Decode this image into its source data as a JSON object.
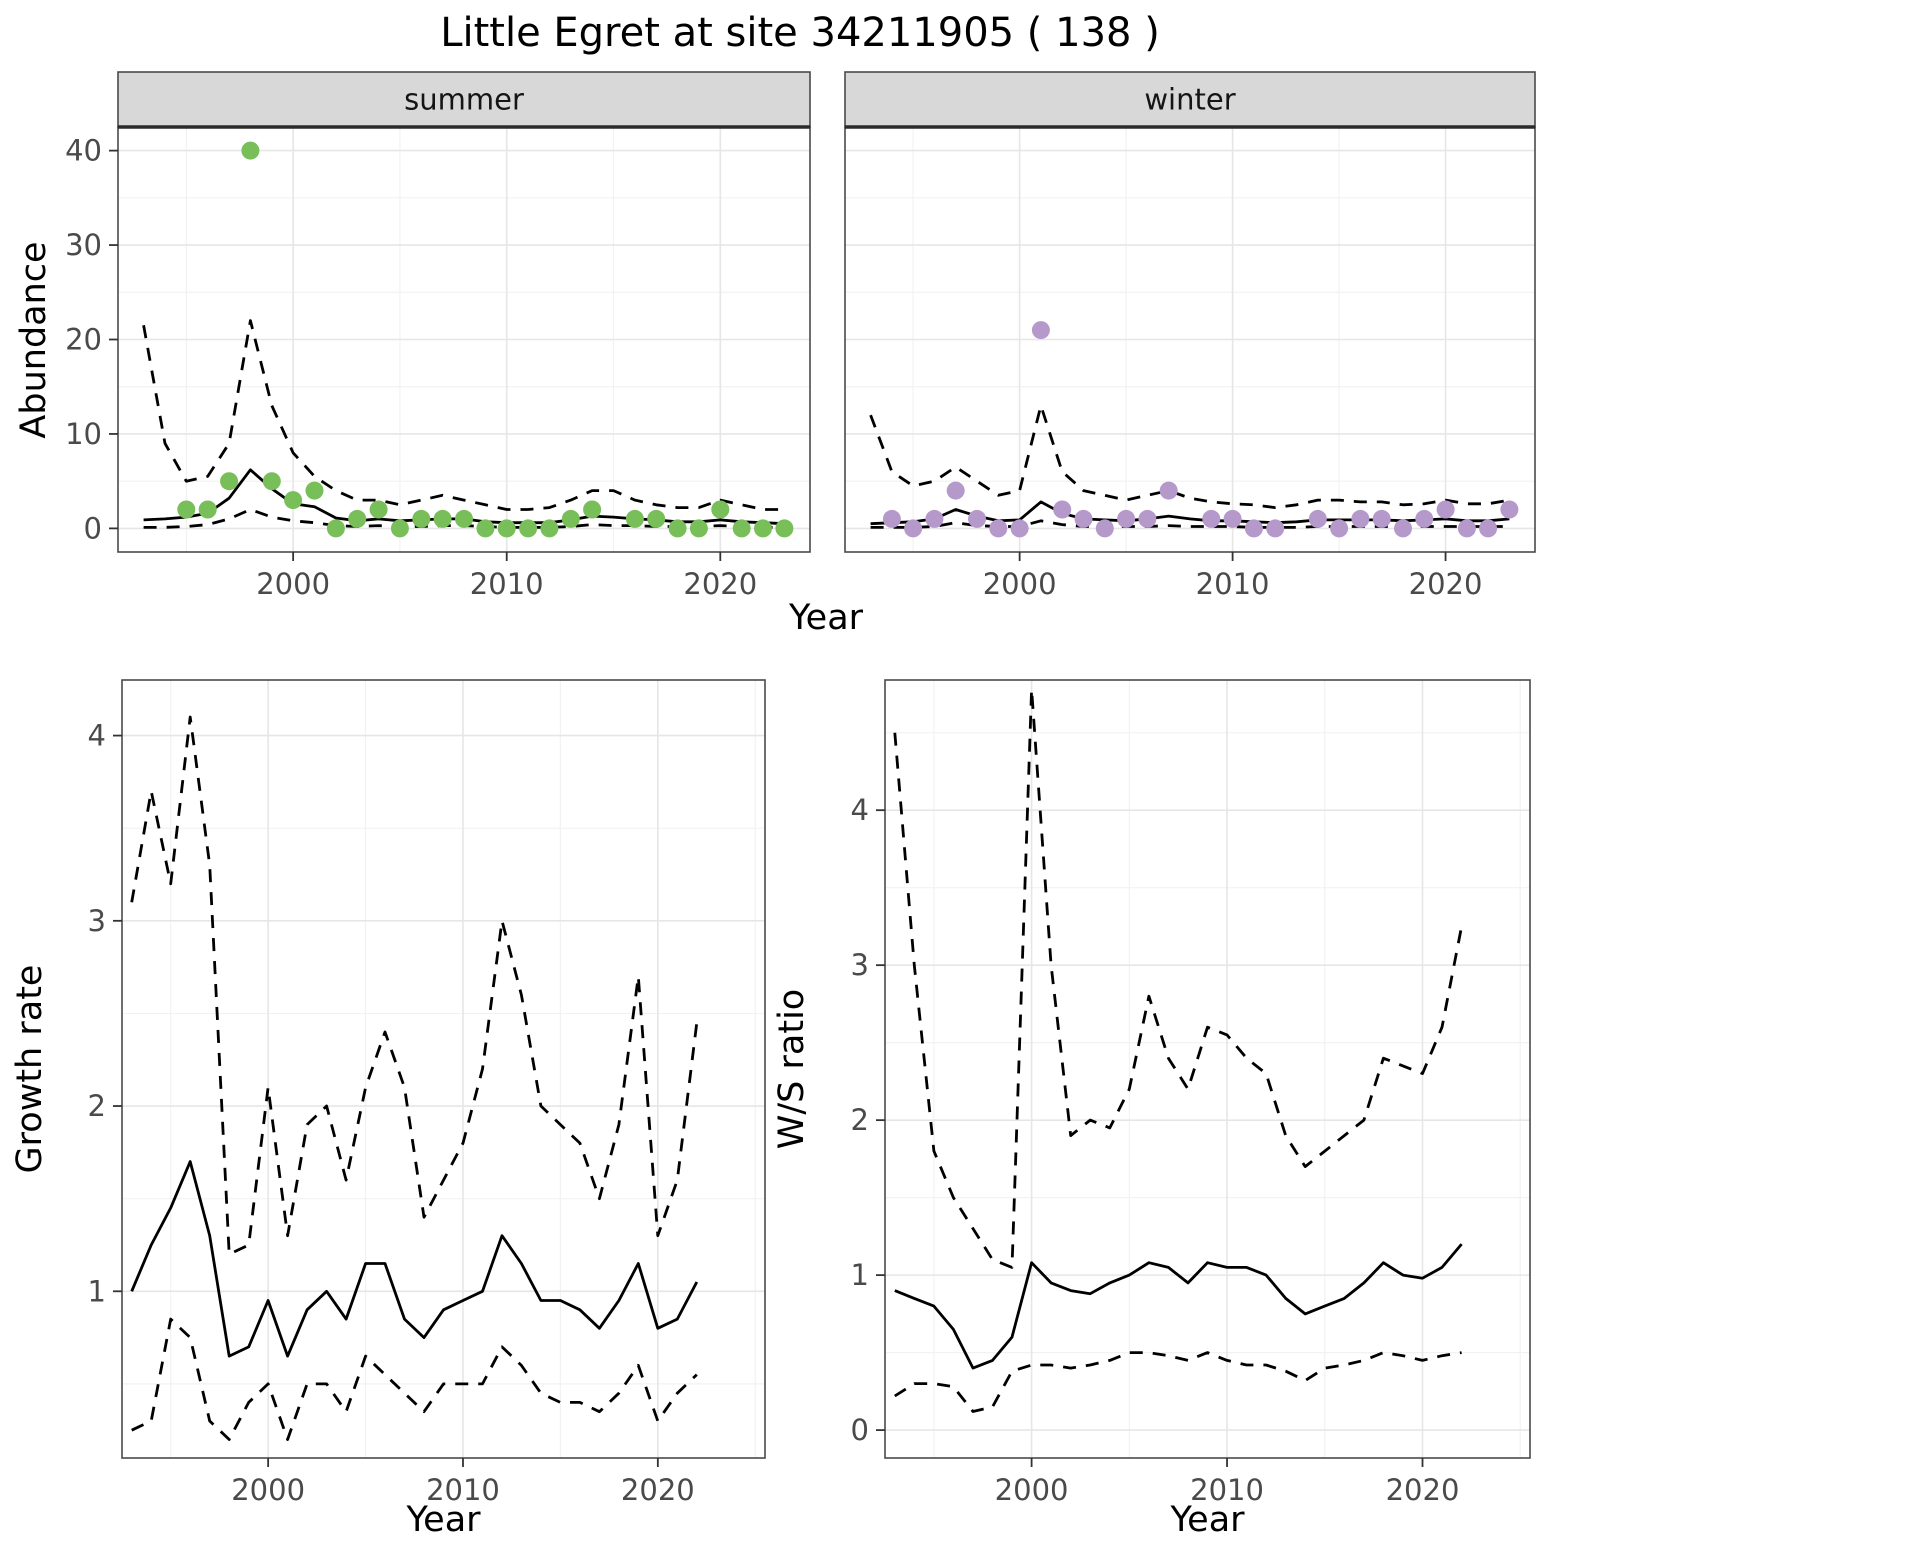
{
  "title": "Little Egret at site 34211905 ( 138 )",
  "axis_labels": {
    "abundance": "Abundance",
    "year_top": "Year",
    "growth": "Growth rate",
    "year_bottom_left": "Year",
    "ws": "W/S ratio",
    "year_bottom_right": "Year"
  },
  "colors": {
    "summer_points": "#78be59",
    "winter_points": "#b599cb",
    "line": "#000000",
    "grid_major": "#e6e6e6",
    "grid_minor": "#f2f2f2",
    "strip_bg": "#d8d8d8",
    "strip_line": "#2b2b2b",
    "panel_border": "#4a4a4a",
    "tick": "#333333",
    "panel_bg": "#ffffff"
  },
  "chart_data": [
    {
      "id": "abundance-summer",
      "type": "scatter",
      "facet_label": "summer",
      "xlabel": "Year",
      "ylabel": "Abundance",
      "xlim": [
        1991.8,
        2024.2
      ],
      "ylim": [
        -2.5,
        42.5
      ],
      "xticks": [
        2000,
        2010,
        2020
      ],
      "yticks": [
        0,
        10,
        20,
        30,
        40
      ],
      "x_minor": [
        1995,
        2005,
        2015
      ],
      "y_minor": [
        5,
        15,
        25,
        35
      ],
      "legend": "none",
      "series": [
        {
          "name": "upper_ci",
          "style": "dashed",
          "x": [
            1993,
            1994,
            1995,
            1996,
            1997,
            1998,
            1999,
            2000,
            2001,
            2002,
            2003,
            2004,
            2005,
            2006,
            2007,
            2008,
            2009,
            2010,
            2011,
            2012,
            2013,
            2014,
            2015,
            2016,
            2017,
            2018,
            2019,
            2020,
            2021,
            2022,
            2023
          ],
          "y": [
            21.5,
            9,
            5,
            5.5,
            9,
            22,
            13,
            8,
            5.5,
            4,
            3,
            3,
            2.5,
            3,
            3.5,
            3,
            2.5,
            2,
            2,
            2.2,
            3,
            4,
            4,
            3,
            2.5,
            2.2,
            2.2,
            3,
            2.5,
            2,
            2
          ]
        },
        {
          "name": "fit",
          "style": "solid",
          "x": [
            1993,
            1994,
            1995,
            1996,
            1997,
            1998,
            1999,
            2000,
            2001,
            2002,
            2003,
            2004,
            2005,
            2006,
            2007,
            2008,
            2009,
            2010,
            2011,
            2012,
            2013,
            2014,
            2015,
            2016,
            2017,
            2018,
            2019,
            2020,
            2021,
            2022,
            2023
          ],
          "y": [
            0.9,
            1.0,
            1.2,
            1.6,
            3.2,
            6.2,
            4.2,
            2.6,
            2.3,
            1.1,
            0.8,
            1.0,
            0.8,
            0.9,
            1.0,
            1.0,
            0.7,
            0.6,
            0.6,
            0.6,
            0.9,
            1.3,
            1.2,
            1.0,
            0.9,
            0.7,
            0.7,
            0.9,
            0.7,
            0.6,
            0.5
          ]
        },
        {
          "name": "lower_ci",
          "style": "dashed",
          "x": [
            1993,
            1994,
            1995,
            1996,
            1997,
            1998,
            1999,
            2000,
            2001,
            2002,
            2003,
            2004,
            2005,
            2006,
            2007,
            2008,
            2009,
            2010,
            2011,
            2012,
            2013,
            2014,
            2015,
            2016,
            2017,
            2018,
            2019,
            2020,
            2021,
            2022,
            2023
          ],
          "y": [
            0.1,
            0.1,
            0.2,
            0.4,
            1.0,
            2.0,
            1.2,
            0.8,
            0.6,
            0.3,
            0.2,
            0.3,
            0.2,
            0.2,
            0.3,
            0.3,
            0.2,
            0.1,
            0.1,
            0.1,
            0.2,
            0.4,
            0.3,
            0.3,
            0.2,
            0.2,
            0.2,
            0.3,
            0.2,
            0.1,
            0.1
          ]
        },
        {
          "name": "observed_counts",
          "style": "points",
          "color": "#78be59",
          "x": [
            1995,
            1996,
            1997,
            1998,
            1999,
            2000,
            2001,
            2002,
            2003,
            2004,
            2005,
            2006,
            2007,
            2008,
            2009,
            2010,
            2011,
            2012,
            2013,
            2014,
            2016,
            2017,
            2018,
            2019,
            2020,
            2021,
            2022,
            2023
          ],
          "y": [
            2,
            2,
            5,
            40,
            5,
            3,
            4,
            0,
            1,
            2,
            0,
            1,
            1,
            1,
            0,
            0,
            0,
            0,
            1,
            2,
            1,
            1,
            0,
            0,
            2,
            0,
            0,
            0
          ]
        }
      ]
    },
    {
      "id": "abundance-winter",
      "type": "scatter",
      "facet_label": "winter",
      "xlabel": "Year",
      "ylabel": "Abundance",
      "xlim": [
        1991.8,
        2024.2
      ],
      "ylim": [
        -2.5,
        42.5
      ],
      "xticks": [
        2000,
        2010,
        2020
      ],
      "yticks": [
        0,
        10,
        20,
        30,
        40
      ],
      "x_minor": [
        1995,
        2005,
        2015
      ],
      "y_minor": [
        5,
        15,
        25,
        35
      ],
      "legend": "none",
      "series": [
        {
          "name": "upper_ci",
          "style": "dashed",
          "x": [
            1993,
            1994,
            1995,
            1996,
            1997,
            1998,
            1999,
            2000,
            2001,
            2002,
            2003,
            2004,
            2005,
            2006,
            2007,
            2008,
            2009,
            2010,
            2011,
            2012,
            2013,
            2014,
            2015,
            2016,
            2017,
            2018,
            2019,
            2020,
            2021,
            2022,
            2023
          ],
          "y": [
            12,
            6,
            4.5,
            5,
            6.5,
            5,
            3.5,
            4,
            13,
            6,
            4,
            3.5,
            3,
            3.5,
            4,
            3.2,
            2.8,
            2.6,
            2.5,
            2.2,
            2.5,
            3,
            3,
            2.8,
            2.8,
            2.5,
            2.6,
            3,
            2.6,
            2.6,
            3
          ]
        },
        {
          "name": "fit",
          "style": "solid",
          "x": [
            1993,
            1994,
            1995,
            1996,
            1997,
            1998,
            1999,
            2000,
            2001,
            2002,
            2003,
            2004,
            2005,
            2006,
            2007,
            2008,
            2009,
            2010,
            2011,
            2012,
            2013,
            2014,
            2015,
            2016,
            2017,
            2018,
            2019,
            2020,
            2021,
            2022,
            2023
          ],
          "y": [
            0.5,
            0.6,
            0.7,
            1.0,
            2.0,
            1.3,
            0.8,
            0.9,
            2.8,
            1.6,
            1.0,
            0.9,
            0.8,
            1.0,
            1.3,
            1.0,
            0.8,
            0.8,
            0.7,
            0.6,
            0.7,
            0.9,
            0.9,
            0.9,
            0.9,
            0.8,
            0.9,
            1.0,
            0.8,
            0.8,
            1.0
          ]
        },
        {
          "name": "lower_ci",
          "style": "dashed",
          "x": [
            1993,
            1994,
            1995,
            1996,
            1997,
            1998,
            1999,
            2000,
            2001,
            2002,
            2003,
            2004,
            2005,
            2006,
            2007,
            2008,
            2009,
            2010,
            2011,
            2012,
            2013,
            2014,
            2015,
            2016,
            2017,
            2018,
            2019,
            2020,
            2021,
            2022,
            2023
          ],
          "y": [
            0.1,
            0.1,
            0.1,
            0.2,
            0.6,
            0.3,
            0.2,
            0.2,
            0.8,
            0.4,
            0.2,
            0.2,
            0.2,
            0.2,
            0.3,
            0.2,
            0.2,
            0.2,
            0.1,
            0.1,
            0.1,
            0.2,
            0.2,
            0.2,
            0.2,
            0.2,
            0.2,
            0.2,
            0.2,
            0.2,
            0.2
          ]
        },
        {
          "name": "observed_counts",
          "style": "points",
          "color": "#b599cb",
          "x": [
            1994,
            1995,
            1996,
            1997,
            1998,
            1999,
            2000,
            2001,
            2002,
            2003,
            2004,
            2005,
            2006,
            2007,
            2009,
            2010,
            2011,
            2012,
            2014,
            2015,
            2016,
            2017,
            2018,
            2019,
            2020,
            2021,
            2022,
            2023
          ],
          "y": [
            1,
            0,
            1,
            4,
            1,
            0,
            0,
            21,
            2,
            1,
            0,
            1,
            1,
            4,
            1,
            1,
            0,
            0,
            1,
            0,
            1,
            1,
            0,
            1,
            2,
            0,
            0,
            2
          ]
        }
      ]
    },
    {
      "id": "growth-rate",
      "type": "line",
      "facet_label": null,
      "xlabel": "Year",
      "ylabel": "Growth rate",
      "xlim": [
        1992.5,
        2025.5
      ],
      "ylim": [
        0.1,
        4.3
      ],
      "xticks": [
        2000,
        2010,
        2020
      ],
      "yticks": [
        1,
        2,
        3,
        4
      ],
      "x_minor": [
        1995,
        2005,
        2015,
        2025
      ],
      "y_minor": [
        0.5,
        1.5,
        2.5,
        3.5
      ],
      "legend": "none",
      "series": [
        {
          "name": "upper_ci",
          "style": "dashed",
          "x": [
            1993,
            1994,
            1995,
            1996,
            1997,
            1998,
            1999,
            2000,
            2001,
            2002,
            2003,
            2004,
            2005,
            2006,
            2007,
            2008,
            2009,
            2010,
            2011,
            2012,
            2013,
            2014,
            2015,
            2016,
            2017,
            2018,
            2019,
            2020,
            2021,
            2022
          ],
          "y": [
            3.1,
            3.7,
            3.2,
            4.1,
            3.3,
            1.2,
            1.25,
            2.1,
            1.3,
            1.9,
            2.0,
            1.6,
            2.1,
            2.4,
            2.1,
            1.4,
            1.6,
            1.8,
            2.2,
            3.0,
            2.6,
            2.0,
            1.9,
            1.8,
            1.5,
            1.9,
            2.7,
            1.3,
            1.6,
            2.45
          ]
        },
        {
          "name": "estimate",
          "style": "solid",
          "x": [
            1993,
            1994,
            1995,
            1996,
            1997,
            1998,
            1999,
            2000,
            2001,
            2002,
            2003,
            2004,
            2005,
            2006,
            2007,
            2008,
            2009,
            2010,
            2011,
            2012,
            2013,
            2014,
            2015,
            2016,
            2017,
            2018,
            2019,
            2020,
            2021,
            2022
          ],
          "y": [
            1.0,
            1.25,
            1.45,
            1.7,
            1.3,
            0.65,
            0.7,
            0.95,
            0.65,
            0.9,
            1.0,
            0.85,
            1.15,
            1.15,
            0.85,
            0.75,
            0.9,
            0.95,
            1.0,
            1.3,
            1.15,
            0.95,
            0.95,
            0.9,
            0.8,
            0.95,
            1.15,
            0.8,
            0.85,
            1.05
          ]
        },
        {
          "name": "lower_ci",
          "style": "dashed",
          "x": [
            1993,
            1994,
            1995,
            1996,
            1997,
            1998,
            1999,
            2000,
            2001,
            2002,
            2003,
            2004,
            2005,
            2006,
            2007,
            2008,
            2009,
            2010,
            2011,
            2012,
            2013,
            2014,
            2015,
            2016,
            2017,
            2018,
            2019,
            2020,
            2021,
            2022
          ],
          "y": [
            0.25,
            0.3,
            0.85,
            0.75,
            0.3,
            0.2,
            0.4,
            0.5,
            0.2,
            0.5,
            0.5,
            0.35,
            0.65,
            0.55,
            0.45,
            0.35,
            0.5,
            0.5,
            0.5,
            0.7,
            0.6,
            0.45,
            0.4,
            0.4,
            0.35,
            0.45,
            0.6,
            0.3,
            0.45,
            0.55
          ]
        }
      ]
    },
    {
      "id": "ws-ratio",
      "type": "line",
      "facet_label": null,
      "xlabel": "Year",
      "ylabel": "W/S ratio",
      "xlim": [
        1992.5,
        2025.5
      ],
      "ylim": [
        -0.18,
        4.84
      ],
      "xticks": [
        2000,
        2010,
        2020
      ],
      "yticks": [
        0,
        1,
        2,
        3,
        4
      ],
      "x_minor": [
        1995,
        2005,
        2015,
        2025
      ],
      "y_minor": [
        0.5,
        1.5,
        2.5,
        3.5,
        4.5
      ],
      "legend": "none",
      "series": [
        {
          "name": "upper_ci",
          "style": "dashed",
          "x": [
            1993,
            1994,
            1995,
            1996,
            1997,
            1998,
            1999,
            2000,
            2001,
            2002,
            2003,
            2004,
            2005,
            2006,
            2007,
            2008,
            2009,
            2010,
            2011,
            2012,
            2013,
            2014,
            2015,
            2016,
            2017,
            2018,
            2019,
            2020,
            2021,
            2022
          ],
          "y": [
            4.5,
            3.0,
            1.8,
            1.5,
            1.3,
            1.1,
            1.05,
            4.78,
            3.0,
            1.9,
            2.0,
            1.95,
            2.2,
            2.8,
            2.4,
            2.2,
            2.6,
            2.55,
            2.4,
            2.3,
            1.9,
            1.7,
            1.8,
            1.9,
            2.0,
            2.4,
            2.35,
            2.3,
            2.6,
            3.25
          ]
        },
        {
          "name": "estimate",
          "style": "solid",
          "x": [
            1993,
            1994,
            1995,
            1996,
            1997,
            1998,
            1999,
            2000,
            2001,
            2002,
            2003,
            2004,
            2005,
            2006,
            2007,
            2008,
            2009,
            2010,
            2011,
            2012,
            2013,
            2014,
            2015,
            2016,
            2017,
            2018,
            2019,
            2020,
            2021,
            2022
          ],
          "y": [
            0.9,
            0.85,
            0.8,
            0.65,
            0.4,
            0.45,
            0.6,
            1.08,
            0.95,
            0.9,
            0.88,
            0.95,
            1.0,
            1.08,
            1.05,
            0.95,
            1.08,
            1.05,
            1.05,
            1.0,
            0.85,
            0.75,
            0.8,
            0.85,
            0.95,
            1.08,
            1.0,
            0.98,
            1.05,
            1.2
          ]
        },
        {
          "name": "lower_ci",
          "style": "dashed",
          "x": [
            1993,
            1994,
            1995,
            1996,
            1997,
            1998,
            1999,
            2000,
            2001,
            2002,
            2003,
            2004,
            2005,
            2006,
            2007,
            2008,
            2009,
            2010,
            2011,
            2012,
            2013,
            2014,
            2015,
            2016,
            2017,
            2018,
            2019,
            2020,
            2021,
            2022
          ],
          "y": [
            0.22,
            0.3,
            0.3,
            0.28,
            0.12,
            0.15,
            0.38,
            0.42,
            0.42,
            0.4,
            0.42,
            0.45,
            0.5,
            0.5,
            0.48,
            0.45,
            0.5,
            0.45,
            0.42,
            0.42,
            0.38,
            0.32,
            0.4,
            0.42,
            0.45,
            0.5,
            0.48,
            0.45,
            0.48,
            0.5
          ]
        }
      ]
    }
  ]
}
